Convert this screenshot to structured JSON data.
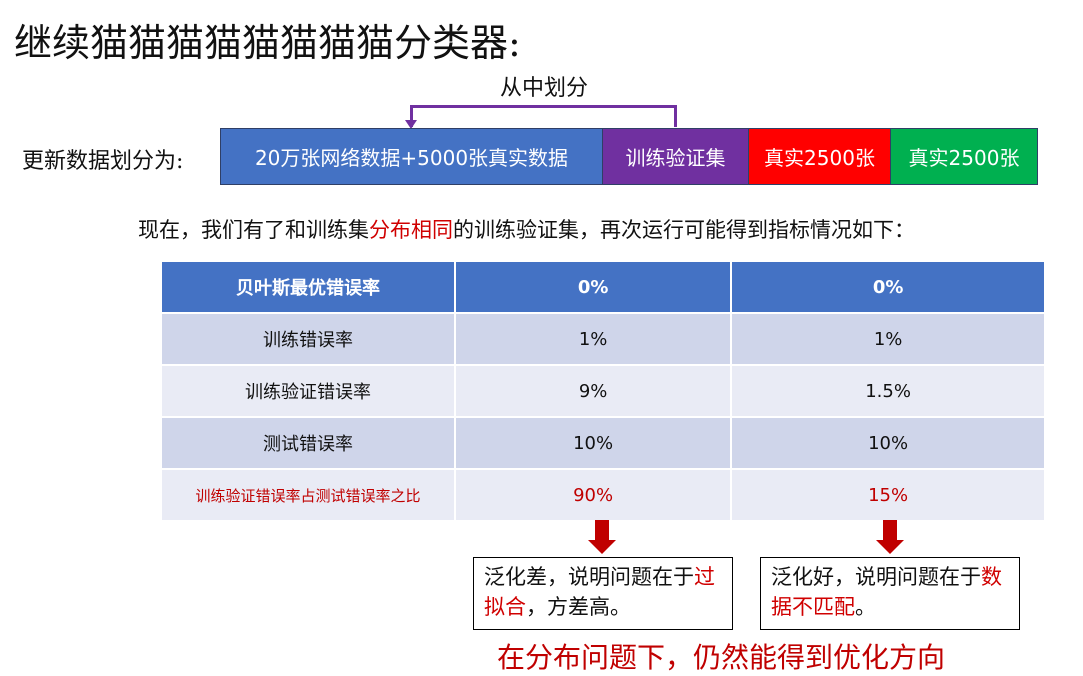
{
  "title": "继续猫猫猫猫猫猫猫猫分类器:",
  "split_label": "从中划分",
  "data_split": {
    "label": "更新数据划分为:",
    "segments": [
      {
        "text": "20万张网络数据+5000张真实数据",
        "color": "#4472C4"
      },
      {
        "text": "训练验证集",
        "color": "#7030A0"
      },
      {
        "text": "真实2500张",
        "color": "#FF0000"
      },
      {
        "text": "真实2500张",
        "color": "#00B050"
      }
    ]
  },
  "intro": {
    "before": "现在，我们有了和训练集",
    "highlight": "分布相同",
    "after": "的训练验证集，再次运行可能得到指标情况如下："
  },
  "table": {
    "header": [
      "贝叶斯最优错误率",
      "0%",
      "0%"
    ],
    "rows": [
      [
        "训练错误率",
        "1%",
        "1%"
      ],
      [
        "训练验证错误率",
        "9%",
        "1.5%"
      ],
      [
        "测试错误率",
        "10%",
        "10%"
      ],
      [
        "训练验证错误率占测试错误率之比",
        "90%",
        "15%"
      ]
    ]
  },
  "notes": [
    {
      "before": "泛化差，说明问题在于",
      "highlight": "过拟合",
      "after": "，方差高。"
    },
    {
      "before": "泛化好，说明问题在于",
      "highlight": "数据不匹配",
      "after": "。"
    }
  ],
  "conclusion": "在分布问题下，仍然能得到优化方向"
}
